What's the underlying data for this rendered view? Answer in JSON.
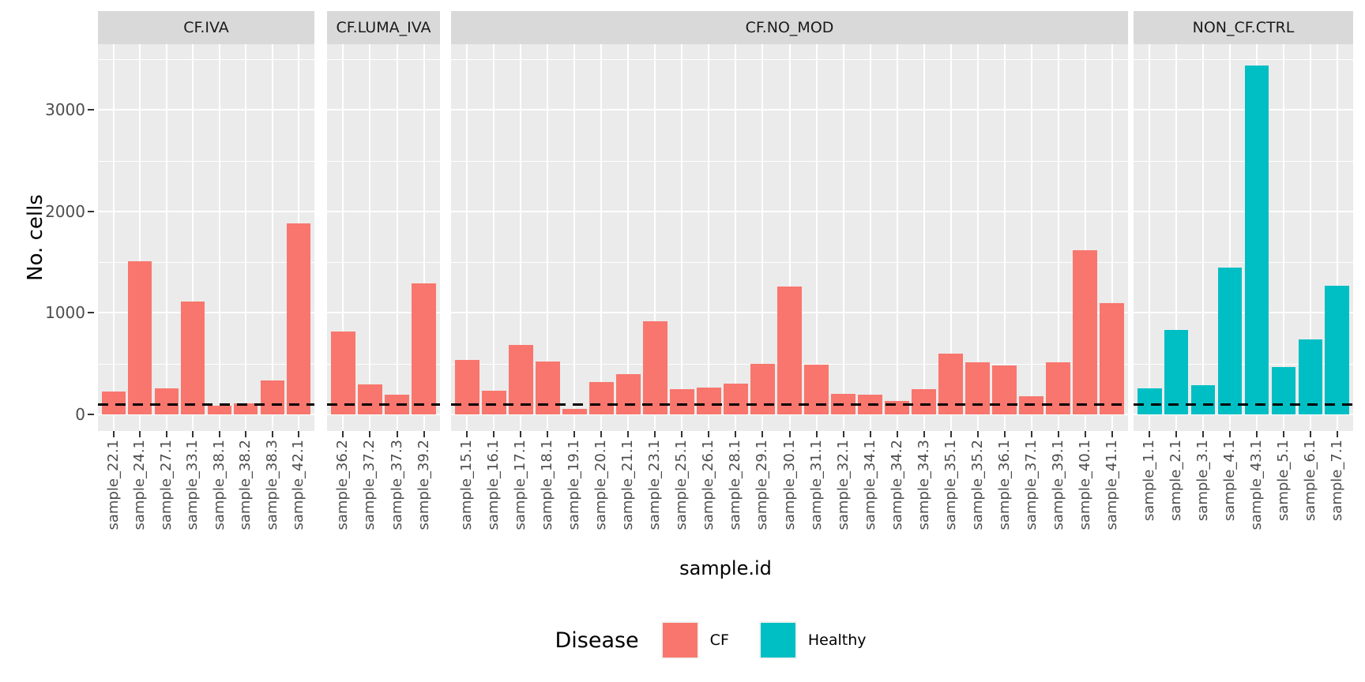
{
  "chart_data": {
    "type": "bar",
    "title": "",
    "xlabel": "sample.id",
    "ylabel": "No. cells",
    "y_axis": {
      "ticks": [
        0,
        1000,
        2000,
        3000
      ],
      "minor_ticks": [
        500,
        1500,
        2500,
        3500
      ],
      "range": [
        0,
        3650
      ],
      "grid": true
    },
    "reference_line": {
      "value": 100,
      "style": "dashed",
      "color": "#000000"
    },
    "legend": {
      "title": "Disease",
      "position": "bottom",
      "entries": [
        {
          "label": "CF",
          "color": "#F8766D"
        },
        {
          "label": "Healthy",
          "color": "#00BFC4"
        }
      ]
    },
    "facets": [
      {
        "label": "CF.IVA",
        "group": "CF",
        "categories": [
          "sample_22.1",
          "sample_24.1",
          "sample_27.1",
          "sample_33.1",
          "sample_38.1",
          "sample_38.2",
          "sample_38.3",
          "sample_42.1"
        ],
        "values": [
          225,
          1510,
          255,
          1110,
          85,
          105,
          335,
          1880
        ]
      },
      {
        "label": "CF.LUMA_IVA",
        "group": "CF",
        "categories": [
          "sample_36.2",
          "sample_37.2",
          "sample_37.3",
          "sample_39.2"
        ],
        "values": [
          820,
          295,
          195,
          1290
        ]
      },
      {
        "label": "CF.NO_MOD",
        "group": "CF",
        "categories": [
          "sample_15.1",
          "sample_16.1",
          "sample_17.1",
          "sample_18.1",
          "sample_19.1",
          "sample_20.1",
          "sample_21.1",
          "sample_23.1",
          "sample_25.1",
          "sample_26.1",
          "sample_28.1",
          "sample_29.1",
          "sample_30.1",
          "sample_31.1",
          "sample_32.1",
          "sample_34.1",
          "sample_34.2",
          "sample_34.3",
          "sample_35.1",
          "sample_35.2",
          "sample_36.1",
          "sample_37.1",
          "sample_39.1",
          "sample_40.1",
          "sample_41.1"
        ],
        "values": [
          535,
          230,
          685,
          520,
          55,
          320,
          400,
          915,
          245,
          265,
          300,
          495,
          1260,
          490,
          205,
          195,
          135,
          250,
          595,
          510,
          480,
          180,
          515,
          1620,
          1095
        ]
      },
      {
        "label": "NON_CF.CTRL",
        "group": "Healthy",
        "categories": [
          "sample_1.1",
          "sample_2.1",
          "sample_3.1",
          "sample_4.1",
          "sample_43.1",
          "sample_5.1",
          "sample_6.1",
          "sample_7.1"
        ],
        "values": [
          260,
          830,
          285,
          1445,
          3440,
          465,
          740,
          1270
        ]
      }
    ]
  },
  "colors": {
    "cf": "#F8766D",
    "healthy": "#00BFC4",
    "panel_background": "#EBEBEB",
    "strip_background": "#D9D9D9",
    "grid": "#FFFFFF",
    "axis_text": "#4D4D4D",
    "strip_text": "#1A1A1A",
    "reference_line": "#000000"
  }
}
